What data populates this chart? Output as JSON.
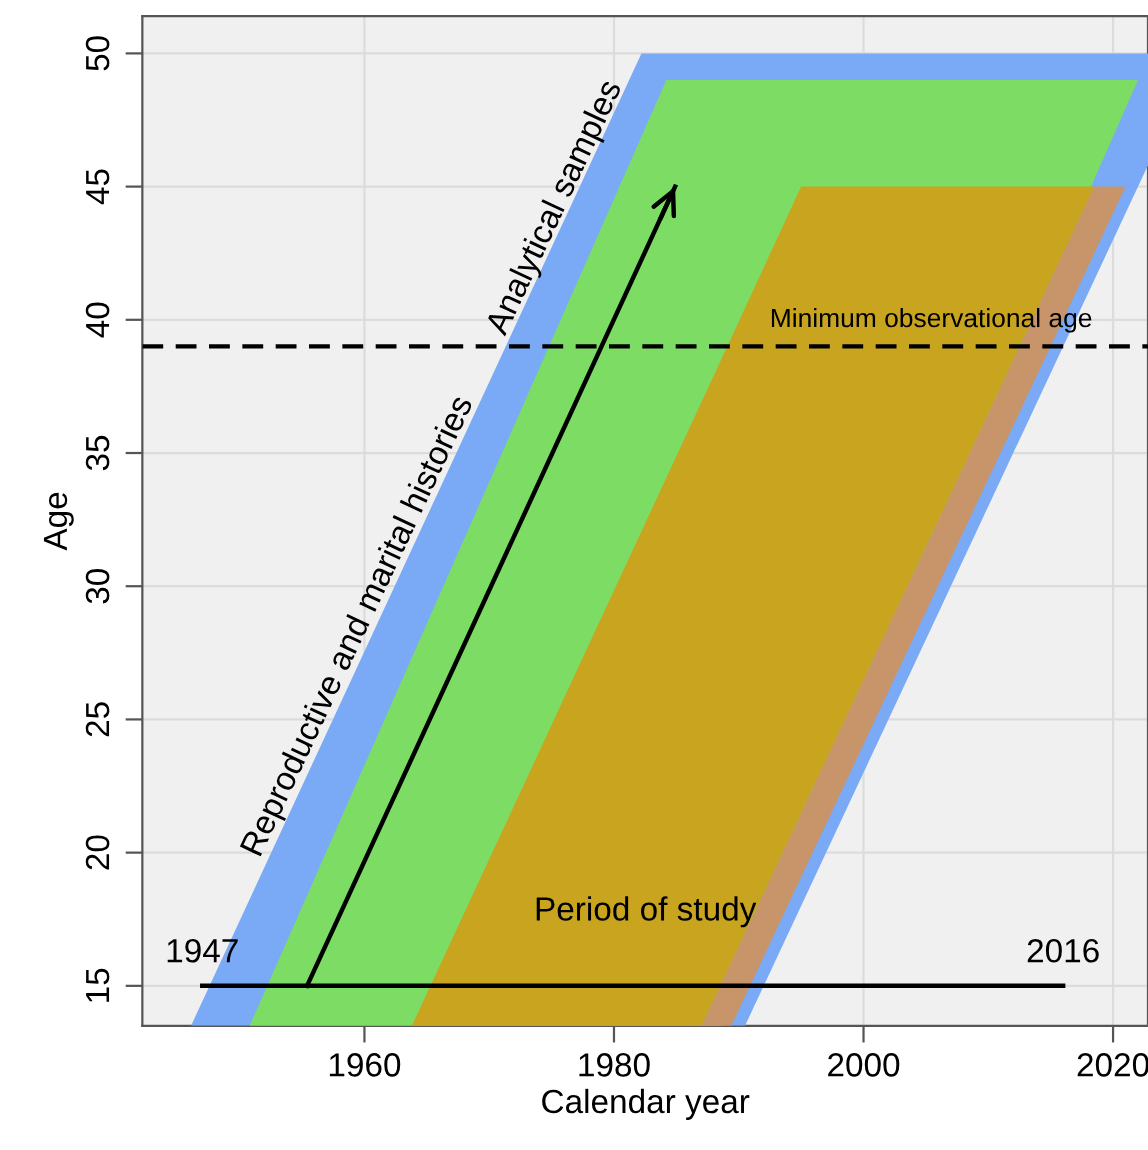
{
  "chart_data": {
    "type": "area",
    "xlabel": "Calendar year",
    "ylabel": "Age",
    "xlim": [
      1942.2,
      2022.8
    ],
    "ylim": [
      13.5,
      51.4
    ],
    "xticks": [
      1960,
      1980,
      2000,
      2020
    ],
    "yticks": [
      15,
      20,
      25,
      30,
      35,
      40,
      45,
      50
    ],
    "grid": true,
    "series": [
      {
        "color": "#7aaaf5",
        "x": [
          1946.1,
          1982.2,
          1990.5,
          2022.8
        ],
        "values": [
          null,
          null,
          null,
          null
        ],
        "lower": [
          13.5,
          13.5,
          13.5,
          45.8
        ],
        "upper": [
          13.5,
          50,
          50,
          50
        ]
      },
      {
        "color": "#7ddc64",
        "x": [
          1950.8,
          1984.2,
          1988.6,
          2022.0
        ],
        "values": [
          null,
          null,
          null,
          null
        ],
        "lower": [
          13.5,
          13.5,
          13.5,
          49
        ],
        "upper": [
          13.5,
          49,
          49,
          49
        ]
      },
      {
        "color": "#c8946a",
        "x": [
          1987.0,
          1989.4,
          2018.5,
          2021.0
        ],
        "values": [
          null,
          null,
          null,
          null
        ],
        "lower": [
          13.5,
          13.5,
          42.5,
          45
        ],
        "upper": [
          13.5,
          15.9,
          45,
          45
        ]
      },
      {
        "color": "#c9a41f",
        "x": [
          1963.8,
          1987.0,
          1995.0,
          2018.5
        ],
        "values": [
          null,
          null,
          null,
          null
        ],
        "lower": [
          13.5,
          13.5,
          21.5,
          45
        ],
        "upper": [
          13.5,
          36.9,
          45,
          45
        ]
      },
      {
        "type": "line",
        "color": "#000000",
        "x": [
          1947,
          2016
        ],
        "values": [
          15,
          15
        ]
      },
      {
        "type": "line",
        "color": "#000000",
        "x": [
          1955.4,
          1984.9
        ],
        "values": [
          15,
          45
        ]
      }
    ],
    "ref_lines": [
      {
        "axis": "y",
        "value": 39,
        "label": "Minimum observational age",
        "color": "#000000",
        "line_style": "dashed"
      }
    ],
    "annotations": [
      {
        "text": "1947",
        "x": 1947,
        "y": 15
      },
      {
        "text": "2016",
        "x": 2016,
        "y": 15
      },
      "Period of study",
      "Reproductive and marital histories",
      "Analytical samples"
    ]
  }
}
